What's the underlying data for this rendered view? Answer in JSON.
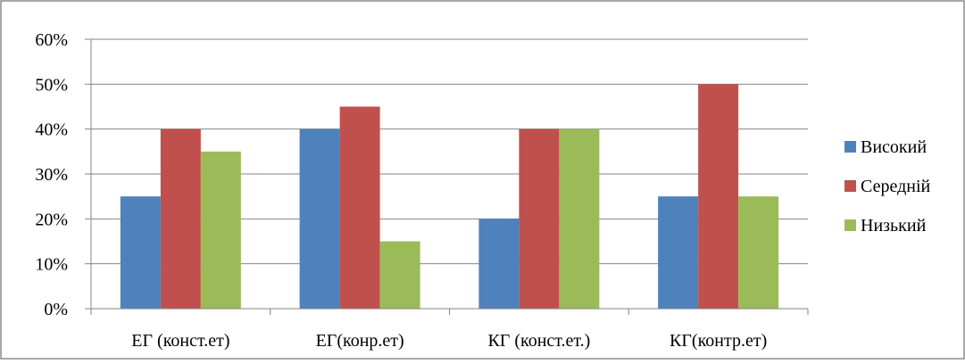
{
  "chart_data": {
    "type": "bar",
    "title": "",
    "xlabel": "",
    "ylabel": "",
    "categories": [
      "ЕГ (конст.ет)",
      "ЕГ(конр.ет)",
      "КГ (конст.ет.)",
      "КГ(контр.ет)"
    ],
    "series": [
      {
        "name": "Високий",
        "values": [
          25,
          40,
          20,
          25
        ],
        "color": "#4f81bd"
      },
      {
        "name": "Середній",
        "values": [
          40,
          45,
          40,
          50
        ],
        "color": "#c0504d"
      },
      {
        "name": "Низький",
        "values": [
          35,
          15,
          40,
          25
        ],
        "color": "#9bbb59"
      }
    ],
    "ylim": [
      0,
      60
    ],
    "yticks": [
      "0%",
      "10%",
      "20%",
      "30%",
      "40%",
      "50%",
      "60%"
    ],
    "grid": true,
    "legend_position": "right"
  }
}
